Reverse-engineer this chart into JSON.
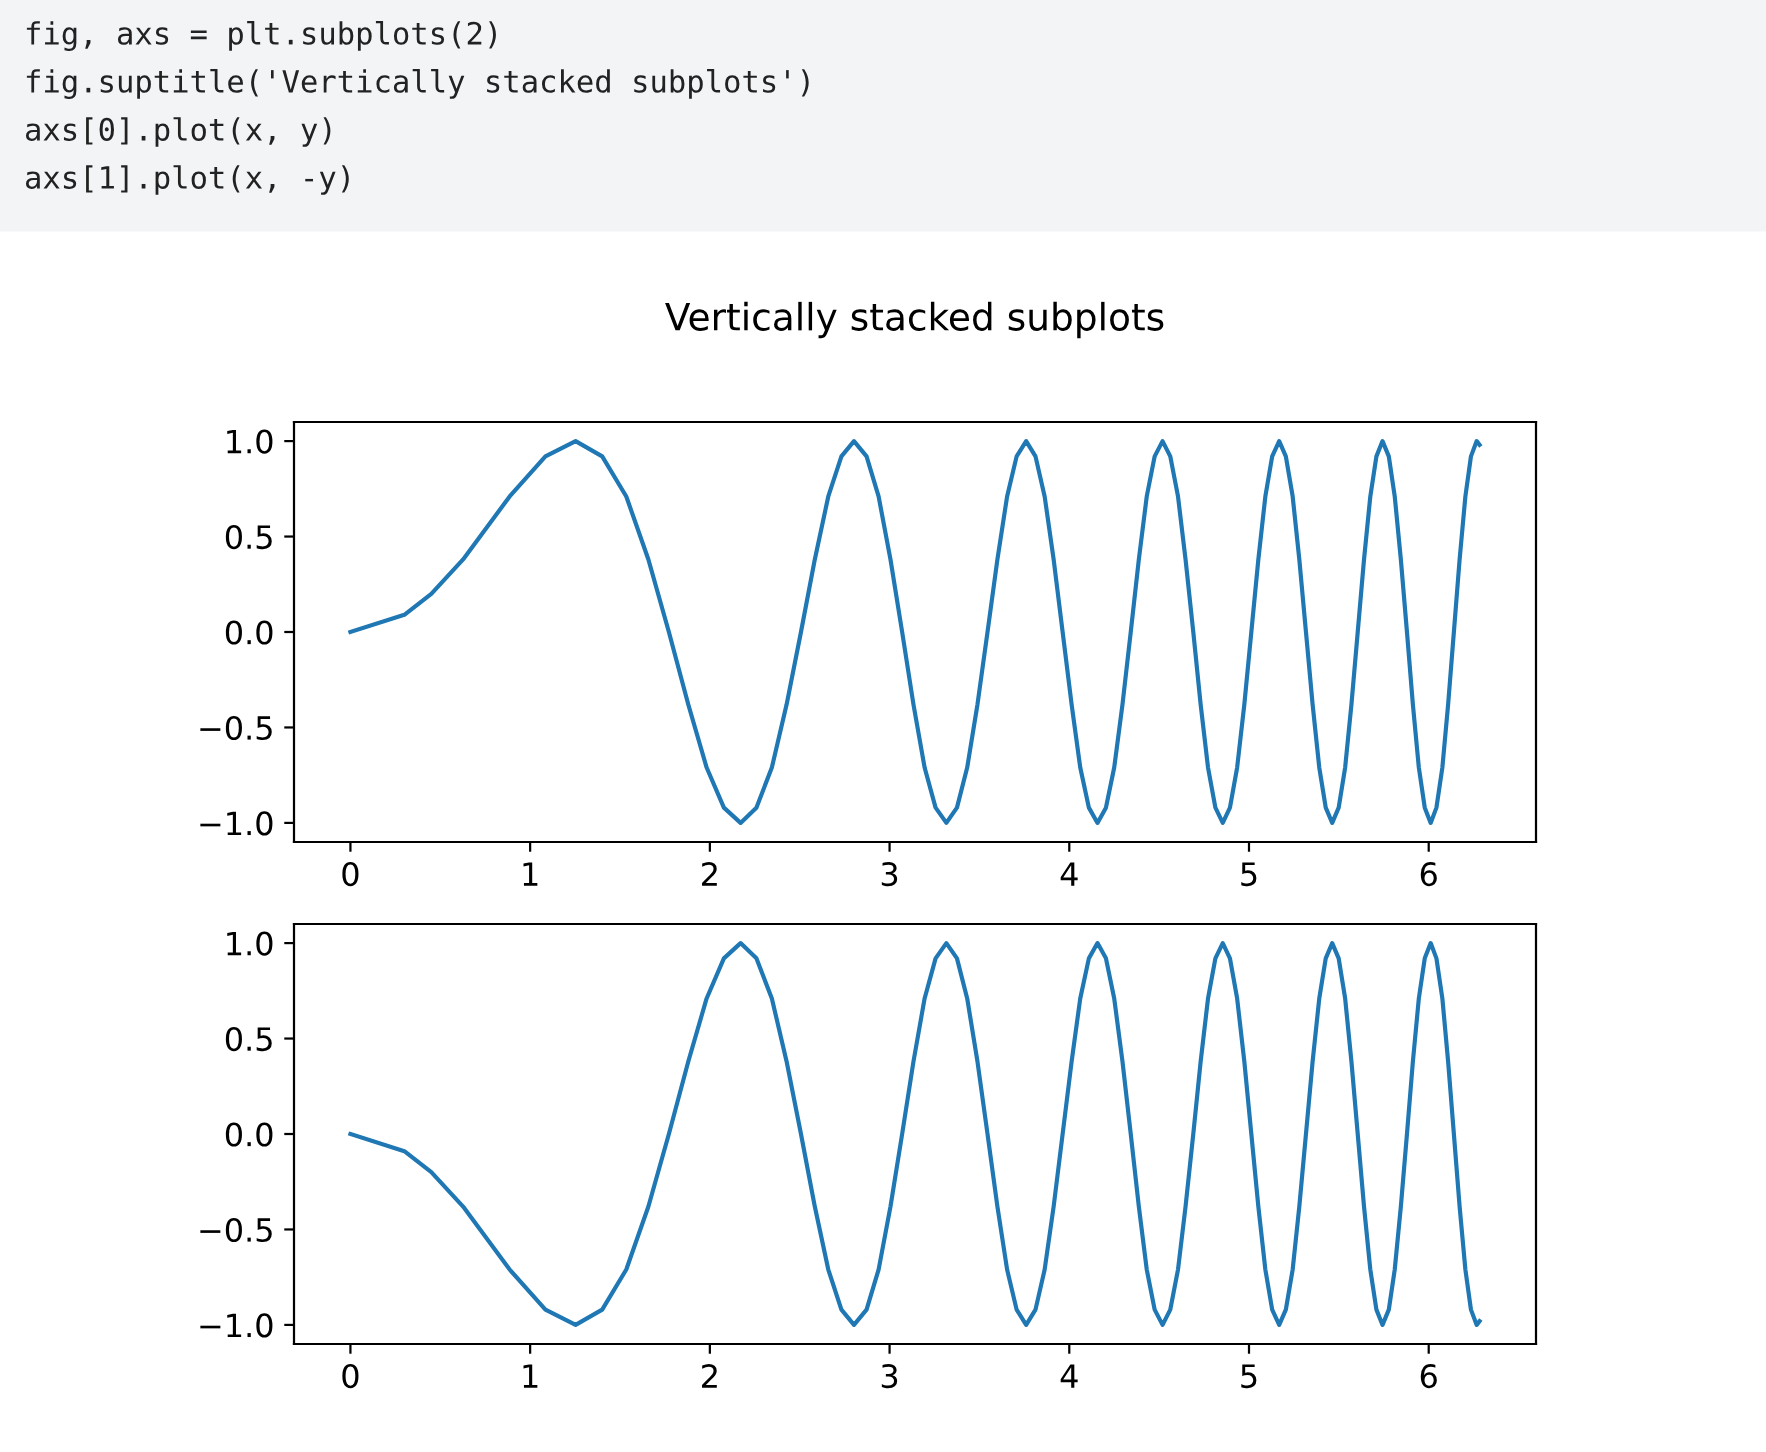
{
  "chart_data": [
    {
      "type": "line",
      "title": "Vertically stacked subplots",
      "annotations": [
        "fig, axs = plt.subplots(2)",
        "fig.suptitle('Vertically stacked subplots')",
        "axs[0].plot(x, y)",
        "axs[1].plot(x, -y)"
      ],
      "x": [
        0,
        0.3,
        0.45,
        0.627,
        0.886,
        1.085,
        1.253,
        1.401,
        1.535,
        1.658,
        1.772,
        1.88,
        1.982,
        2.078,
        2.171,
        2.259,
        2.345,
        2.427,
        2.507,
        2.584,
        2.659,
        2.732,
        2.802,
        2.872,
        2.939,
        3.005,
        3.07,
        3.133,
        3.195,
        3.256,
        3.316,
        3.375,
        3.432,
        3.489,
        3.545,
        3.6,
        3.654,
        3.707,
        3.76,
        3.812,
        3.863,
        3.913,
        3.963,
        4.013,
        4.061,
        4.109,
        4.157,
        4.204,
        4.25,
        4.296,
        4.342,
        4.387,
        4.431,
        4.475,
        4.519,
        4.562,
        4.605,
        4.647,
        4.69,
        4.731,
        4.772,
        4.813,
        4.854,
        4.894,
        4.934,
        4.974,
        5.013,
        5.052,
        5.091,
        5.129,
        5.168,
        5.205,
        5.243,
        5.28,
        5.317,
        5.354,
        5.391,
        5.427,
        5.463,
        5.499,
        5.535,
        5.57,
        5.605,
        5.64,
        5.675,
        5.709,
        5.743,
        5.778,
        5.811,
        5.845,
        5.879,
        5.912,
        5.945,
        5.978,
        6.011,
        6.043,
        6.076,
        6.108,
        6.14,
        6.172,
        6.204,
        6.235,
        6.267,
        6.283
      ],
      "series": [
        {
          "color": "#1f77b4",
          "values": [
            0,
            0.09,
            0.2,
            0.38,
            0.71,
            0.92,
            1,
            0.92,
            0.71,
            0.38,
            0,
            -0.38,
            -0.71,
            -0.92,
            -1,
            -0.92,
            -0.71,
            -0.38,
            0,
            0.38,
            0.71,
            0.92,
            1,
            0.92,
            0.71,
            0.38,
            0,
            -0.38,
            -0.71,
            -0.92,
            -1,
            -0.92,
            -0.71,
            -0.38,
            0,
            0.38,
            0.71,
            0.92,
            1,
            0.92,
            0.71,
            0.38,
            0,
            -0.38,
            -0.71,
            -0.92,
            -1,
            -0.92,
            -0.71,
            -0.38,
            0,
            0.38,
            0.71,
            0.92,
            1,
            0.92,
            0.71,
            0.38,
            0,
            -0.38,
            -0.71,
            -0.92,
            -1,
            -0.92,
            -0.71,
            -0.38,
            0,
            0.38,
            0.71,
            0.92,
            1,
            0.92,
            0.71,
            0.38,
            0,
            -0.38,
            -0.71,
            -0.92,
            -1,
            -0.92,
            -0.71,
            -0.38,
            0,
            0.38,
            0.71,
            0.92,
            1,
            0.92,
            0.71,
            0.38,
            0,
            -0.38,
            -0.71,
            -0.92,
            -1,
            -0.92,
            -0.71,
            -0.38,
            0,
            0.38,
            0.71,
            0.92,
            1,
            0.98
          ]
        }
      ],
      "xlim": [
        -0.314,
        6.597
      ],
      "ylim": [
        -1.1,
        1.1
      ],
      "xticks": [
        0,
        1,
        2,
        3,
        4,
        5,
        6
      ],
      "yticks": [
        {
          "value": -1.0,
          "label": "−1.0"
        },
        {
          "value": -0.5,
          "label": "−0.5"
        },
        {
          "value": 0.0,
          "label": "0.0"
        },
        {
          "value": 0.5,
          "label": "0.5"
        },
        {
          "value": 1.0,
          "label": "1.0"
        }
      ]
    },
    {
      "type": "line",
      "x": [
        0,
        0.3,
        0.45,
        0.627,
        0.886,
        1.085,
        1.253,
        1.401,
        1.535,
        1.658,
        1.772,
        1.88,
        1.982,
        2.078,
        2.171,
        2.259,
        2.345,
        2.427,
        2.507,
        2.584,
        2.659,
        2.732,
        2.802,
        2.872,
        2.939,
        3.005,
        3.07,
        3.133,
        3.195,
        3.256,
        3.316,
        3.375,
        3.432,
        3.489,
        3.545,
        3.6,
        3.654,
        3.707,
        3.76,
        3.812,
        3.863,
        3.913,
        3.963,
        4.013,
        4.061,
        4.109,
        4.157,
        4.204,
        4.25,
        4.296,
        4.342,
        4.387,
        4.431,
        4.475,
        4.519,
        4.562,
        4.605,
        4.647,
        4.69,
        4.731,
        4.772,
        4.813,
        4.854,
        4.894,
        4.934,
        4.974,
        5.013,
        5.052,
        5.091,
        5.129,
        5.168,
        5.205,
        5.243,
        5.28,
        5.317,
        5.354,
        5.391,
        5.427,
        5.463,
        5.499,
        5.535,
        5.57,
        5.605,
        5.64,
        5.675,
        5.709,
        5.743,
        5.778,
        5.811,
        5.845,
        5.879,
        5.912,
        5.945,
        5.978,
        6.011,
        6.043,
        6.076,
        6.108,
        6.14,
        6.172,
        6.204,
        6.235,
        6.267,
        6.283
      ],
      "series": [
        {
          "color": "#1f77b4",
          "values": [
            0,
            -0.09,
            -0.2,
            -0.38,
            -0.71,
            -0.92,
            -1,
            -0.92,
            -0.71,
            -0.38,
            0,
            0.38,
            0.71,
            0.92,
            1,
            0.92,
            0.71,
            0.38,
            0,
            -0.38,
            -0.71,
            -0.92,
            -1,
            -0.92,
            -0.71,
            -0.38,
            0,
            0.38,
            0.71,
            0.92,
            1,
            0.92,
            0.71,
            0.38,
            0,
            -0.38,
            -0.71,
            -0.92,
            -1,
            -0.92,
            -0.71,
            -0.38,
            0,
            0.38,
            0.71,
            0.92,
            1,
            0.92,
            0.71,
            0.38,
            0,
            -0.38,
            -0.71,
            -0.92,
            -1,
            -0.92,
            -0.71,
            -0.38,
            0,
            0.38,
            0.71,
            0.92,
            1,
            0.92,
            0.71,
            0.38,
            0,
            -0.38,
            -0.71,
            -0.92,
            -1,
            -0.92,
            -0.71,
            -0.38,
            0,
            0.38,
            0.71,
            0.92,
            1,
            0.92,
            0.71,
            0.38,
            0,
            -0.38,
            -0.71,
            -0.92,
            -1,
            -0.92,
            -0.71,
            -0.38,
            0,
            0.38,
            0.71,
            0.92,
            1,
            0.92,
            0.71,
            0.38,
            0,
            -0.38,
            -0.71,
            -0.92,
            -1,
            -0.98
          ]
        }
      ],
      "xlim": [
        -0.314,
        6.597
      ],
      "ylim": [
        -1.1,
        1.1
      ],
      "xticks": [
        0,
        1,
        2,
        3,
        4,
        5,
        6
      ],
      "yticks": [
        {
          "value": -1.0,
          "label": "−1.0"
        },
        {
          "value": -0.5,
          "label": "−0.5"
        },
        {
          "value": 0.0,
          "label": "0.0"
        },
        {
          "value": 0.5,
          "label": "0.5"
        },
        {
          "value": 1.0,
          "label": "1.0"
        }
      ]
    }
  ]
}
